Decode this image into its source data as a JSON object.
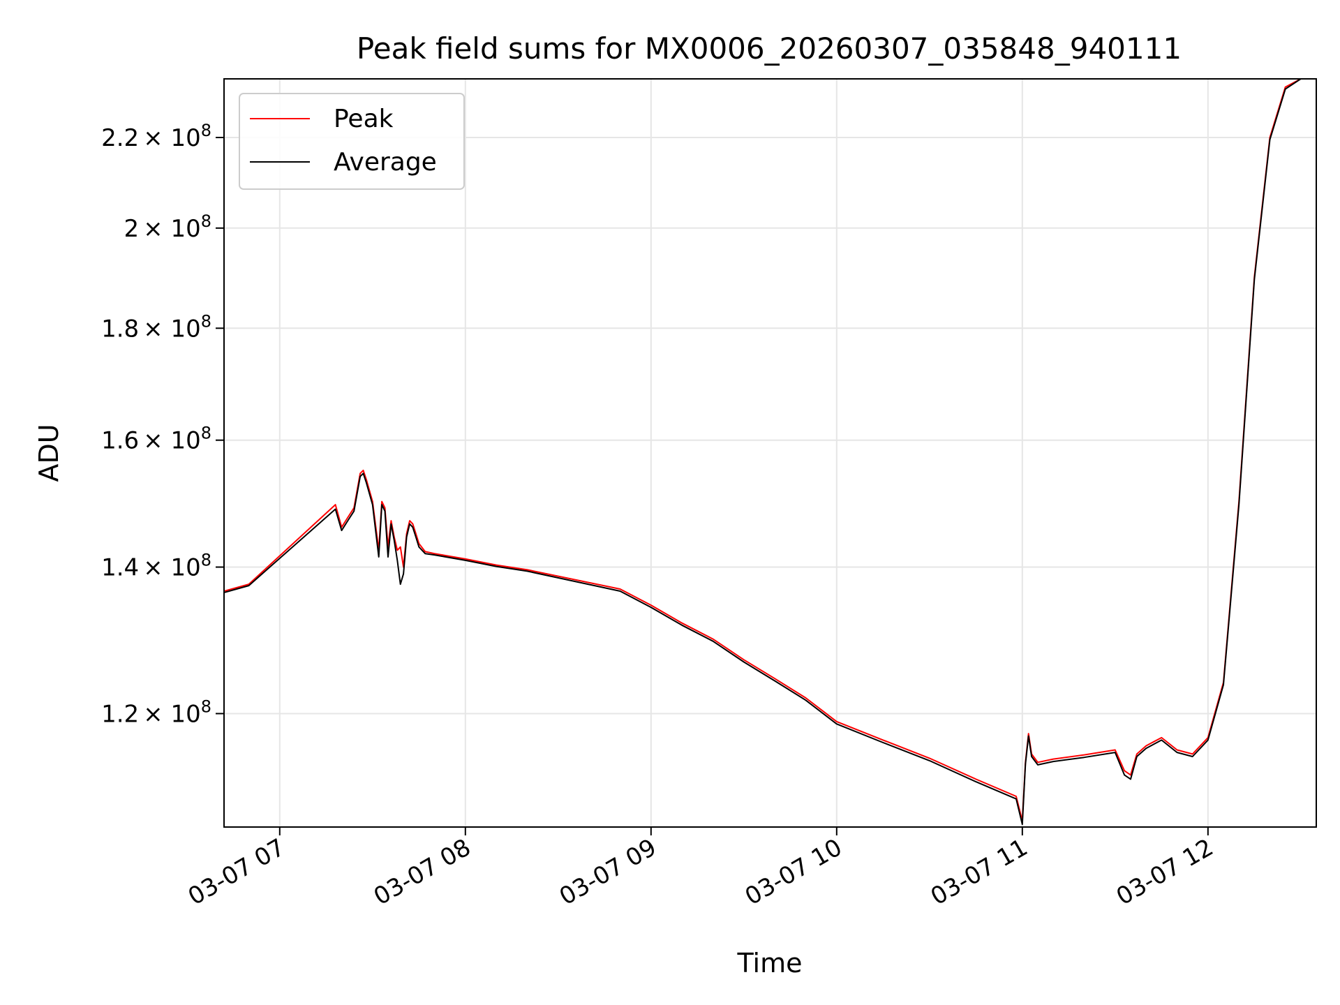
{
  "chart_data": {
    "type": "line",
    "title": "Peak field sums for MX0006_20260307_035848_940111",
    "xlabel": "Time",
    "ylabel": "ADU",
    "y_scale": "log",
    "grid": true,
    "legend_position": "top-left",
    "xlim": [
      "03-07 06:42",
      "03-07 12:35"
    ],
    "ylim": [
      106500000,
      234000000
    ],
    "x_ticks": [
      "03-07 07",
      "03-07 08",
      "03-07 09",
      "03-07 10",
      "03-07 11",
      "03-07 12"
    ],
    "x_tick_times": [
      "03-07 07:00",
      "03-07 08:00",
      "03-07 09:00",
      "03-07 10:00",
      "03-07 11:00",
      "03-07 12:00"
    ],
    "y_ticks": [
      {
        "value": 120000000,
        "mantissa": "1.2",
        "base": "× 10",
        "exp": "8"
      },
      {
        "value": 140000000,
        "mantissa": "1.4",
        "base": "× 10",
        "exp": "8"
      },
      {
        "value": 160000000,
        "mantissa": "1.6",
        "base": "× 10",
        "exp": "8"
      },
      {
        "value": 180000000,
        "mantissa": "1.8",
        "base": "× 10",
        "exp": "8"
      },
      {
        "value": 200000000,
        "mantissa": "2",
        "base": "× 10",
        "exp": "8"
      },
      {
        "value": 220000000,
        "mantissa": "2.2",
        "base": "× 10",
        "exp": "8"
      }
    ],
    "series": [
      {
        "name": "Peak",
        "color": "#ff0000",
        "x": [
          "03-07 06:42",
          "03-07 06:50",
          "03-07 07:18",
          "03-07 07:20",
          "03-07 07:22",
          "03-07 07:24",
          "03-07 07:26",
          "03-07 07:27",
          "03-07 07:28",
          "03-07 07:30",
          "03-07 07:32",
          "03-07 07:33",
          "03-07 07:34",
          "03-07 07:35",
          "03-07 07:36",
          "03-07 07:37",
          "03-07 07:38",
          "03-07 07:39",
          "03-07 07:40",
          "03-07 07:41",
          "03-07 07:42",
          "03-07 07:43",
          "03-07 07:44",
          "03-07 07:45",
          "03-07 07:47",
          "03-07 07:50",
          "03-07 08:00",
          "03-07 08:10",
          "03-07 08:20",
          "03-07 08:50",
          "03-07 09:00",
          "03-07 09:10",
          "03-07 09:20",
          "03-07 09:30",
          "03-07 09:40",
          "03-07 09:50",
          "03-07 10:00",
          "03-07 10:15",
          "03-07 10:30",
          "03-07 10:45",
          "03-07 10:58",
          "03-07 11:00",
          "03-07 11:01",
          "03-07 11:02",
          "03-07 11:03",
          "03-07 11:05",
          "03-07 11:10",
          "03-07 11:20",
          "03-07 11:30",
          "03-07 11:33",
          "03-07 11:35",
          "03-07 11:37",
          "03-07 11:40",
          "03-07 11:45",
          "03-07 11:50",
          "03-07 11:55",
          "03-07 12:00",
          "03-07 12:05",
          "03-07 12:10",
          "03-07 12:15",
          "03-07 12:20",
          "03-07 12:25",
          "03-07 12:30",
          "03-07 12:35"
        ],
        "values": [
          136500000,
          137500000,
          149500000,
          146000000,
          147500000,
          149000000,
          154500000,
          155000000,
          153500000,
          150000000,
          142500000,
          150000000,
          149000000,
          143000000,
          147000000,
          144500000,
          142500000,
          143000000,
          140000000,
          145000000,
          147000000,
          146500000,
          145000000,
          143500000,
          142300000,
          142000000,
          141200000,
          140300000,
          139600000,
          136800000,
          134500000,
          132000000,
          129800000,
          127000000,
          124500000,
          122000000,
          119000000,
          116700000,
          114500000,
          112000000,
          110000000,
          107200000,
          114000000,
          117500000,
          115000000,
          114000000,
          114400000,
          114900000,
          115500000,
          113000000,
          112500000,
          115000000,
          116000000,
          117000000,
          115500000,
          115000000,
          117000000,
          124000000,
          150000000,
          190000000,
          220000000,
          232000000,
          234000000,
          234000000
        ]
      },
      {
        "name": "Average",
        "color": "#000000",
        "x": [
          "03-07 06:42",
          "03-07 06:50",
          "03-07 07:18",
          "03-07 07:20",
          "03-07 07:22",
          "03-07 07:24",
          "03-07 07:26",
          "03-07 07:27",
          "03-07 07:28",
          "03-07 07:30",
          "03-07 07:32",
          "03-07 07:33",
          "03-07 07:34",
          "03-07 07:35",
          "03-07 07:36",
          "03-07 07:37",
          "03-07 07:38",
          "03-07 07:39",
          "03-07 07:40",
          "03-07 07:41",
          "03-07 07:42",
          "03-07 07:43",
          "03-07 07:44",
          "03-07 07:45",
          "03-07 07:47",
          "03-07 07:50",
          "03-07 08:00",
          "03-07 08:10",
          "03-07 08:20",
          "03-07 08:50",
          "03-07 09:00",
          "03-07 09:10",
          "03-07 09:20",
          "03-07 09:30",
          "03-07 09:40",
          "03-07 09:50",
          "03-07 10:00",
          "03-07 10:15",
          "03-07 10:30",
          "03-07 10:45",
          "03-07 10:58",
          "03-07 11:00",
          "03-07 11:01",
          "03-07 11:02",
          "03-07 11:03",
          "03-07 11:05",
          "03-07 11:10",
          "03-07 11:20",
          "03-07 11:30",
          "03-07 11:33",
          "03-07 11:35",
          "03-07 11:37",
          "03-07 11:40",
          "03-07 11:45",
          "03-07 11:50",
          "03-07 11:55",
          "03-07 12:00",
          "03-07 12:05",
          "03-07 12:10",
          "03-07 12:15",
          "03-07 12:20",
          "03-07 12:25",
          "03-07 12:30",
          "03-07 12:35"
        ],
        "values": [
          136300000,
          137300000,
          148800000,
          145500000,
          147000000,
          148500000,
          154000000,
          154500000,
          153000000,
          149500000,
          141500000,
          149500000,
          148500000,
          141500000,
          146500000,
          144000000,
          141000000,
          137500000,
          139000000,
          144500000,
          146500000,
          146000000,
          144500000,
          143000000,
          142000000,
          141800000,
          141000000,
          140100000,
          139400000,
          136500000,
          134200000,
          131700000,
          129500000,
          126700000,
          124200000,
          121700000,
          118700000,
          116400000,
          114200000,
          111700000,
          109700000,
          106800000,
          113800000,
          117200000,
          114700000,
          113700000,
          114100000,
          114600000,
          115200000,
          112500000,
          112000000,
          114700000,
          115700000,
          116700000,
          115200000,
          114700000,
          116700000,
          123700000,
          149500000,
          189500000,
          219500000,
          231500000,
          234000000,
          234000000
        ]
      }
    ]
  }
}
